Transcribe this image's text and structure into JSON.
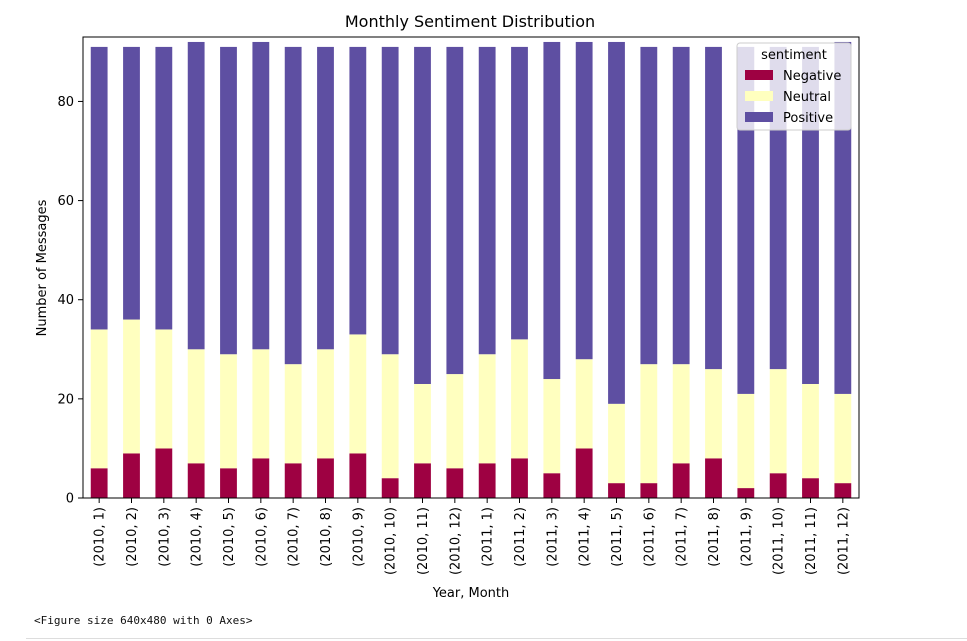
{
  "chart_data": {
    "type": "bar",
    "stacked": true,
    "title": "Monthly Sentiment Distribution",
    "xlabel": "Year, Month",
    "ylabel": "Number of Messages",
    "ylim": [
      0,
      93
    ],
    "yticks": [
      0,
      20,
      40,
      60,
      80
    ],
    "categories": [
      "(2010, 1)",
      "(2010, 2)",
      "(2010, 3)",
      "(2010, 4)",
      "(2010, 5)",
      "(2010, 6)",
      "(2010, 7)",
      "(2010, 8)",
      "(2010, 9)",
      "(2010, 10)",
      "(2010, 11)",
      "(2010, 12)",
      "(2011, 1)",
      "(2011, 2)",
      "(2011, 3)",
      "(2011, 4)",
      "(2011, 5)",
      "(2011, 6)",
      "(2011, 7)",
      "(2011, 8)",
      "(2011, 9)",
      "(2011, 10)",
      "(2011, 11)",
      "(2011, 12)"
    ],
    "legend": {
      "title": "sentiment",
      "position": "upper right"
    },
    "series": [
      {
        "name": "Negative",
        "color": "#9e0142",
        "values": [
          6,
          9,
          10,
          7,
          6,
          8,
          7,
          8,
          9,
          4,
          7,
          6,
          7,
          8,
          5,
          10,
          3,
          3,
          7,
          8,
          2,
          5,
          4,
          3
        ]
      },
      {
        "name": "Neutral",
        "color": "#ffffbf",
        "values": [
          28,
          27,
          24,
          23,
          23,
          22,
          20,
          22,
          24,
          25,
          16,
          19,
          22,
          24,
          19,
          18,
          16,
          24,
          20,
          18,
          19,
          21,
          19,
          18
        ]
      },
      {
        "name": "Positive",
        "color": "#5e4fa2",
        "values": [
          57,
          55,
          57,
          62,
          62,
          62,
          64,
          61,
          58,
          62,
          68,
          66,
          62,
          59,
          68,
          64,
          73,
          64,
          64,
          65,
          70,
          65,
          68,
          71
        ]
      }
    ],
    "grid": false
  },
  "footer": {
    "figure_note": "<Figure size 640x480 with 0 Axes>"
  }
}
